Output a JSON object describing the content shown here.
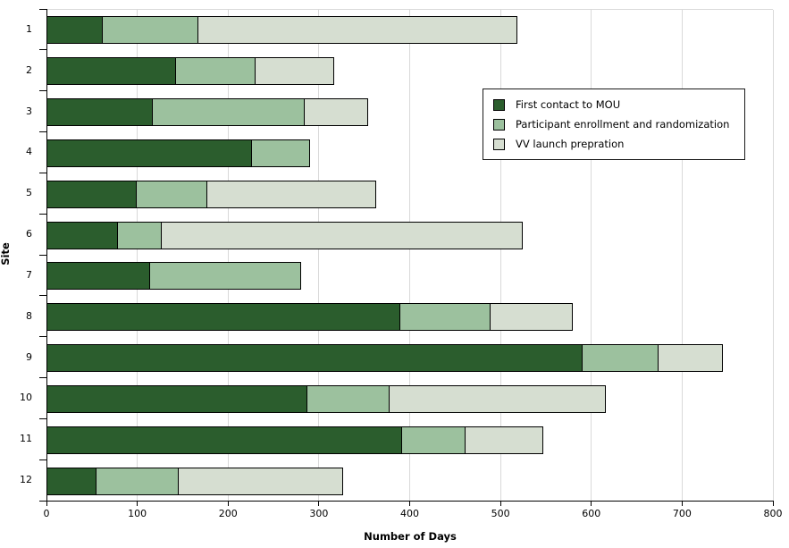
{
  "chart_data": {
    "type": "bar",
    "orientation": "horizontal",
    "stacked": true,
    "title": "",
    "xlabel": "Number of Days",
    "ylabel": "Site",
    "xlim": [
      0,
      800
    ],
    "xticks": [
      0,
      100,
      200,
      300,
      400,
      500,
      600,
      700,
      800
    ],
    "categories": [
      "1",
      "2",
      "3",
      "4",
      "5",
      "6",
      "7",
      "8",
      "9",
      "10",
      "11",
      "12"
    ],
    "series": [
      {
        "name": "First contact to MOU",
        "color": "#2b5d2d",
        "values": [
          62,
          143,
          117,
          226,
          99,
          79,
          114,
          390,
          590,
          287,
          392,
          55
        ]
      },
      {
        "name": "Participant enrollment and randomization",
        "color": "#9cc19e",
        "values": [
          106,
          89,
          168,
          65,
          79,
          49,
          167,
          100,
          85,
          92,
          71,
          92
        ]
      },
      {
        "name": "VV launch prepration",
        "color": "#d6ded1",
        "values": [
          352,
          88,
          71,
          0,
          187,
          399,
          0,
          92,
          72,
          239,
          87,
          182
        ]
      }
    ],
    "totals": [
      520,
      320,
      356,
      291,
      365,
      527,
      281,
      582,
      747,
      618,
      550,
      329
    ],
    "legend_position": "inside-top-right",
    "grid": {
      "show": true,
      "axis": "x",
      "color": "#d9d9d9"
    },
    "styles": {
      "bar_border": "#000000",
      "axis_color": "#000000",
      "background": "#ffffff"
    }
  }
}
